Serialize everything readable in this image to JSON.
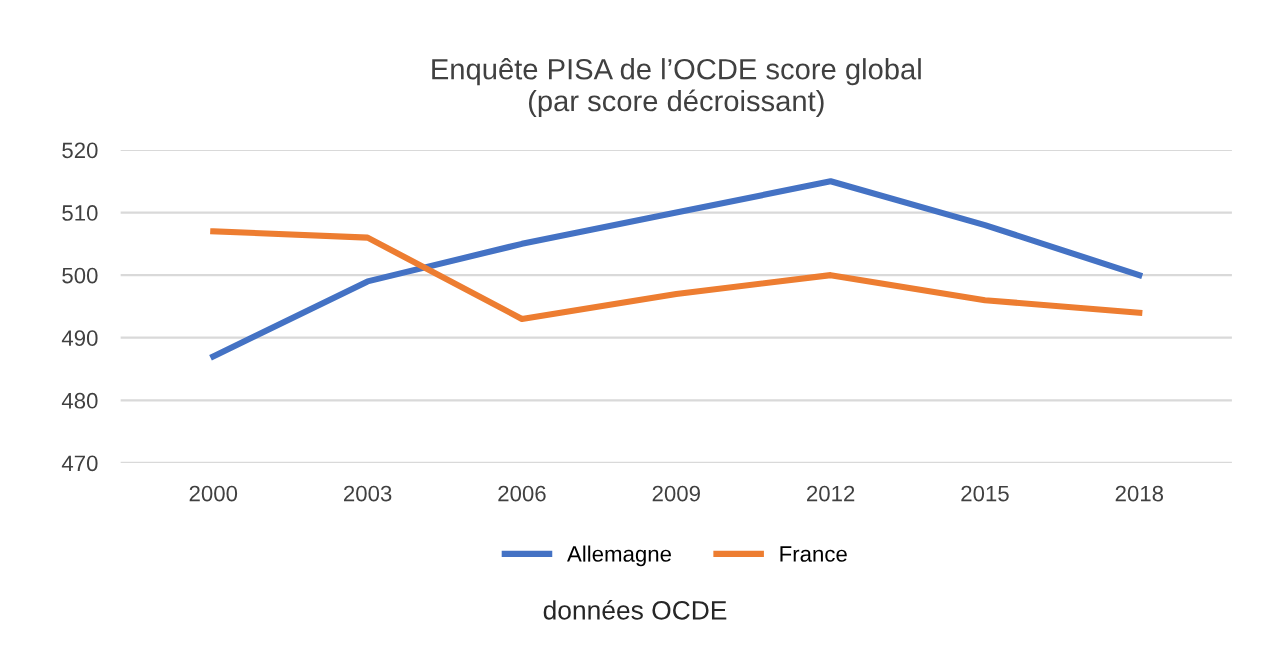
{
  "chart_data": {
    "type": "line",
    "title": "Enquête PISA de l’OCDE score global\n(par score décroissant)",
    "categories": [
      "2000",
      "2003",
      "2006",
      "2009",
      "2012",
      "2015",
      "2018"
    ],
    "series": [
      {
        "name": "Allemagne",
        "color": "#4472c4",
        "values": [
          487,
          499,
          505,
          510,
          515,
          508,
          500
        ]
      },
      {
        "name": "France",
        "color": "#ed7d31",
        "values": [
          507,
          506,
          493,
          497,
          500,
          496,
          494
        ]
      }
    ],
    "ylim": [
      470,
      520
    ],
    "yticks": [
      470,
      480,
      490,
      500,
      510,
      520
    ],
    "grid": "y",
    "legend": "bottom",
    "annotations": [
      "données OCDE"
    ]
  }
}
